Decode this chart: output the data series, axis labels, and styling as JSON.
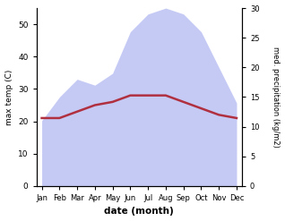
{
  "months": [
    "Jan",
    "Feb",
    "Mar",
    "Apr",
    "May",
    "Jun",
    "Jul",
    "Aug",
    "Sep",
    "Oct",
    "Nov",
    "Dec"
  ],
  "temp_max": [
    21,
    21,
    23,
    25,
    26,
    28,
    28,
    28,
    26,
    24,
    22,
    21
  ],
  "precipitation": [
    11,
    15,
    18,
    17,
    19,
    26,
    29,
    30,
    29,
    26,
    20,
    14
  ],
  "temp_ylim": [
    0,
    55
  ],
  "precip_ylim": [
    0,
    30
  ],
  "temp_color": "#b03040",
  "precip_fill_color": "#c5caf5",
  "xlabel": "date (month)",
  "ylabel_left": "max temp (C)",
  "ylabel_right": "med. precipitation (kg/m2)",
  "bg_color": "#ffffff",
  "temp_linewidth": 1.8,
  "left_yticks": [
    0,
    10,
    20,
    30,
    40,
    50
  ],
  "right_yticks": [
    0,
    5,
    10,
    15,
    20,
    25,
    30
  ]
}
